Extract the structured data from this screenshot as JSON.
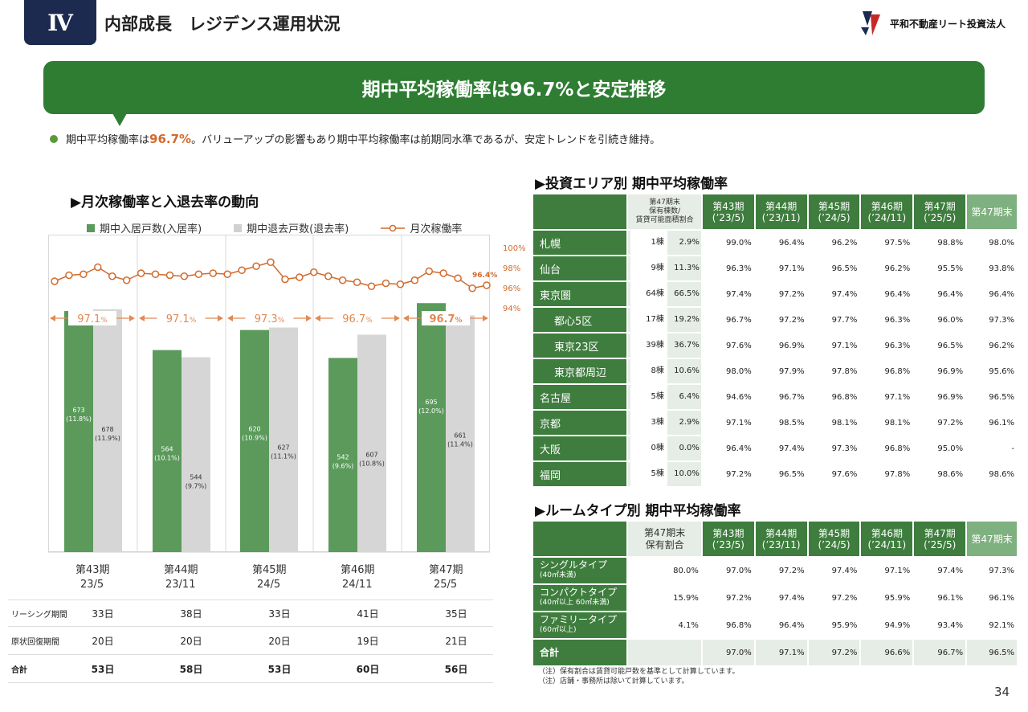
{
  "header": {
    "section": "Ⅳ",
    "title": "内部成長　レジデンス運用状況",
    "company": "平和不動産リート投資法人"
  },
  "banner": {
    "text": "期中平均稼働率は96.7%と安定推移"
  },
  "bullet": {
    "pre": "期中平均稼働率は",
    "highlight": "96.7%",
    "post": "。バリューアップの影響もあり期中平均稼働率は前期同水準であるが、安定トレンドを引続き維持。"
  },
  "left": {
    "title": "▶月次稼働率と入退去率の動向",
    "legend": {
      "in": "期中入居戸数(入居率)",
      "out": "期中退去戸数(退去率)",
      "rate": "月次稼働率"
    },
    "pct_axis": [
      "100%",
      "98%",
      "96%",
      "94%"
    ],
    "last_label": "96.4%",
    "avg_rates": [
      {
        "num": "97.1",
        "unit": "%"
      },
      {
        "num": "97.1",
        "unit": "%"
      },
      {
        "num": "97.3",
        "unit": "%"
      },
      {
        "num": "96.7",
        "unit": "%"
      },
      {
        "num": "96.7",
        "unit": "%"
      }
    ],
    "periods": [
      {
        "name": "第43期",
        "date": "23/5"
      },
      {
        "name": "第44期",
        "date": "23/11"
      },
      {
        "name": "第45期",
        "date": "24/5"
      },
      {
        "name": "第46期",
        "date": "24/11"
      },
      {
        "name": "第47期",
        "date": "25/5"
      }
    ],
    "bottom_rows": [
      {
        "label": "リーシング期間",
        "values": [
          "33日",
          "38日",
          "33日",
          "41日",
          "35日"
        ]
      },
      {
        "label": "原状回復期間",
        "values": [
          "20日",
          "20日",
          "20日",
          "19日",
          "21日"
        ]
      },
      {
        "label": "合計",
        "values": [
          "53日",
          "58日",
          "53日",
          "60日",
          "56日"
        ]
      }
    ]
  },
  "chart_data": {
    "type": "bar",
    "categories": [
      "第43期 23/5",
      "第44期 23/11",
      "第45期 24/5",
      "第46期 24/11",
      "第47期 25/5"
    ],
    "series": [
      {
        "name": "期中入居戸数(入居率)",
        "values": [
          673,
          564,
          620,
          542,
          695
        ],
        "labels": [
          "(11.8%)",
          "(10.1%)",
          "(10.9%)",
          "(9.6%)",
          "(12.0%)"
        ],
        "color": "#5b9a5b"
      },
      {
        "name": "期中退去戸数(退去率)",
        "values": [
          678,
          544,
          627,
          607,
          661
        ],
        "labels": [
          "(11.9%)",
          "(9.7%)",
          "(11.1%)",
          "(10.8%)",
          "(11.4%)"
        ],
        "color": "#d6d6d6"
      }
    ],
    "line": {
      "name": "月次稼働率",
      "color": "#d26a2e",
      "ylim": [
        94,
        100
      ],
      "values": [
        96.8,
        97.4,
        97.5,
        98.2,
        97.3,
        96.9,
        97.6,
        97.5,
        97.4,
        97.3,
        97.5,
        97.6,
        97.5,
        97.9,
        98.3,
        98.7,
        97.0,
        97.2,
        97.7,
        97.3,
        96.9,
        96.7,
        96.3,
        96.6,
        96.5,
        96.9,
        97.8,
        97.6,
        97.1,
        96.1,
        96.4
      ]
    },
    "ylim": [
      0,
      900
    ]
  },
  "area_table": {
    "title": "▶投資エリア別 期中平均稼働率",
    "header": {
      "holding": "第47期末\n保有棟数/\n賃貸可能面積割合",
      "periods": [
        "第43期\n(’23/5)",
        "第44期\n(’23/11)",
        "第45期\n(’24/5)",
        "第46期\n(’24/11)",
        "第47期\n(’25/5)"
      ],
      "end": "第47期末"
    },
    "rows": [
      {
        "name": "札幌",
        "sub": false,
        "count": "1棟",
        "ratio": "2.9%",
        "v": [
          "99.0%",
          "96.4%",
          "96.2%",
          "97.5%",
          "98.8%",
          "98.0%"
        ]
      },
      {
        "name": "仙台",
        "sub": false,
        "count": "9棟",
        "ratio": "11.3%",
        "v": [
          "96.3%",
          "97.1%",
          "96.5%",
          "96.2%",
          "95.5%",
          "93.8%"
        ]
      },
      {
        "name": "東京圏",
        "sub": false,
        "count": "64棟",
        "ratio": "66.5%",
        "v": [
          "97.4%",
          "97.2%",
          "97.4%",
          "96.4%",
          "96.4%",
          "96.4%"
        ]
      },
      {
        "name": "都心5区",
        "sub": true,
        "count": "17棟",
        "ratio": "19.2%",
        "v": [
          "96.7%",
          "97.2%",
          "97.7%",
          "96.3%",
          "96.0%",
          "97.3%"
        ]
      },
      {
        "name": "東京23区",
        "sub": true,
        "count": "39棟",
        "ratio": "36.7%",
        "v": [
          "97.6%",
          "96.9%",
          "97.1%",
          "96.3%",
          "96.5%",
          "96.2%"
        ]
      },
      {
        "name": "東京都周辺",
        "sub": true,
        "count": "8棟",
        "ratio": "10.6%",
        "v": [
          "98.0%",
          "97.9%",
          "97.8%",
          "96.8%",
          "96.9%",
          "95.6%"
        ]
      },
      {
        "name": "名古屋",
        "sub": false,
        "count": "5棟",
        "ratio": "6.4%",
        "v": [
          "94.6%",
          "96.7%",
          "96.8%",
          "97.1%",
          "96.9%",
          "96.5%"
        ]
      },
      {
        "name": "京都",
        "sub": false,
        "count": "3棟",
        "ratio": "2.9%",
        "v": [
          "97.1%",
          "98.5%",
          "98.1%",
          "98.1%",
          "97.2%",
          "96.1%"
        ]
      },
      {
        "name": "大阪",
        "sub": false,
        "count": "0棟",
        "ratio": "0.0%",
        "v": [
          "96.4%",
          "97.4%",
          "97.3%",
          "96.8%",
          "95.0%",
          "-"
        ]
      },
      {
        "name": "福岡",
        "sub": false,
        "count": "5棟",
        "ratio": "10.0%",
        "v": [
          "97.2%",
          "96.5%",
          "97.6%",
          "97.8%",
          "98.6%",
          "98.6%"
        ]
      }
    ]
  },
  "room_table": {
    "title": "▶ルームタイプ別 期中平均稼働率",
    "header": {
      "holding": "第47期末\n保有割合",
      "periods": [
        "第43期\n(’23/5)",
        "第44期\n(’23/11)",
        "第45期\n(’24/5)",
        "第46期\n(’24/11)",
        "第47期\n(’25/5)"
      ],
      "end": "第47期末"
    },
    "rows": [
      {
        "name": "シングルタイプ",
        "note": "(40㎡未満)",
        "ratio": "80.0%",
        "v": [
          "97.0%",
          "97.2%",
          "97.4%",
          "97.1%",
          "97.4%",
          "97.3%"
        ]
      },
      {
        "name": "コンパクトタイプ",
        "note": "(40㎡以上 60㎡未満)",
        "ratio": "15.9%",
        "v": [
          "97.2%",
          "97.4%",
          "97.2%",
          "95.9%",
          "96.1%",
          "96.1%"
        ]
      },
      {
        "name": "ファミリータイプ",
        "note": "(60㎡以上)",
        "ratio": "4.1%",
        "v": [
          "96.8%",
          "96.4%",
          "95.9%",
          "94.9%",
          "93.4%",
          "92.1%"
        ]
      },
      {
        "name": "合計",
        "note": "",
        "ratio": "",
        "v": [
          "97.0%",
          "97.1%",
          "97.2%",
          "96.6%",
          "96.7%",
          "96.5%"
        ]
      }
    ]
  },
  "notes": [
    "（注）保有割合は賃貸可能戸数を基準として計算しています。",
    "（注）店舗・事務所は除いて計算しています。"
  ],
  "page_number": "34",
  "colors": {
    "green": "#2e7d32",
    "table_green": "#3e7d3e",
    "bar_in": "#5b9a5b",
    "bar_out": "#d6d6d6",
    "line": "#d26a2e",
    "navy": "#1d2a50"
  }
}
